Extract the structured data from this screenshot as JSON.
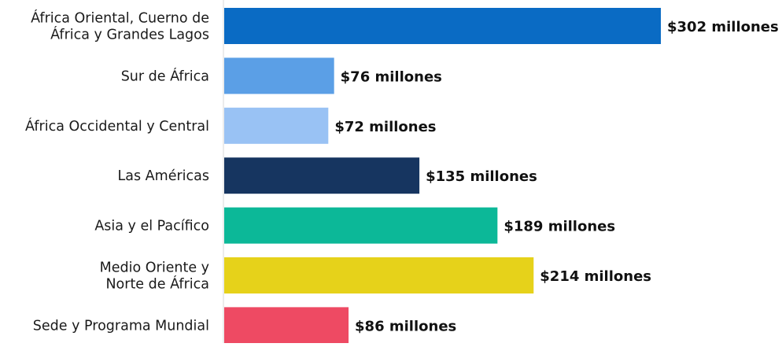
{
  "chart_data": {
    "type": "bar",
    "orientation": "horizontal",
    "title": "",
    "xlabel": "",
    "ylabel": "",
    "categories": [
      [
        "África Oriental, Cuerno de",
        "África y Grandes Lagos"
      ],
      [
        "Sur de África"
      ],
      [
        "África Occidental y Central"
      ],
      [
        "Las Américas"
      ],
      [
        "Asia y el Pacífico"
      ],
      [
        "Medio Oriente y",
        "Norte de África"
      ],
      [
        "Sede y Programa Mundial"
      ]
    ],
    "values": [
      302,
      76,
      72,
      135,
      189,
      214,
      86
    ],
    "value_labels": [
      "$302 millones",
      "$76 millones",
      "$72 millones",
      "$135 millones",
      "$189 millones",
      "$214 millones",
      "$86 millones"
    ],
    "colors": [
      "#0A6BC4",
      "#5B9FE6",
      "#99C2F4",
      "#163560",
      "#0CB898",
      "#E6D21A",
      "#EE4A63"
    ],
    "xlim": [
      0,
      302
    ],
    "grid": false,
    "legend": "none"
  }
}
